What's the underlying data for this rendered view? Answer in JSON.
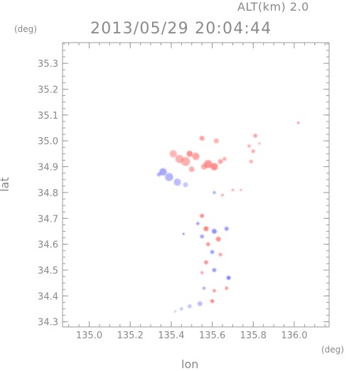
{
  "header": {
    "altitude_label": "ALT(km) 2.0",
    "timestamp": "2013/05/29 20:04:44"
  },
  "axes": {
    "y_unit": "(deg)",
    "x_unit": "(deg)"
  },
  "chart_data": {
    "type": "heatmap",
    "xlabel": "lon",
    "ylabel": "lat",
    "xlim": [
      134.87,
      136.17
    ],
    "ylim": [
      34.28,
      35.38
    ],
    "x_ticks": [
      135.0,
      135.2,
      135.4,
      135.6,
      135.8,
      136.0
    ],
    "x_tick_labels": [
      "135.0",
      "135.2",
      "135.4",
      "135.6",
      "135.8",
      "136.0"
    ],
    "y_ticks": [
      34.3,
      34.4,
      34.5,
      34.6,
      34.7,
      34.8,
      34.9,
      35.0,
      35.1,
      35.2,
      35.3
    ],
    "y_tick_labels": [
      "34.3",
      "34.4",
      "34.5",
      "34.6",
      "34.7",
      "34.8",
      "34.9",
      "35.0",
      "35.1",
      "35.2",
      "35.3"
    ],
    "colors": {
      "positive": "#ff6e6e",
      "negative": "#6e6eff",
      "axis": "#999999"
    },
    "echoes": [
      {
        "lon": 135.55,
        "lat": 35.01,
        "v": 0.4,
        "r": 0.012
      },
      {
        "lon": 135.62,
        "lat": 35.0,
        "v": 0.3,
        "r": 0.012
      },
      {
        "lon": 135.49,
        "lat": 34.95,
        "v": 0.5,
        "r": 0.015
      },
      {
        "lon": 135.52,
        "lat": 34.94,
        "v": 0.35,
        "r": 0.018
      },
      {
        "lon": 135.47,
        "lat": 34.92,
        "v": 0.3,
        "r": 0.022
      },
      {
        "lon": 135.44,
        "lat": 34.93,
        "v": 0.3,
        "r": 0.02
      },
      {
        "lon": 135.41,
        "lat": 34.95,
        "v": 0.25,
        "r": 0.018
      },
      {
        "lon": 135.5,
        "lat": 34.89,
        "v": 0.3,
        "r": 0.014
      },
      {
        "lon": 135.58,
        "lat": 34.91,
        "v": 0.45,
        "r": 0.02
      },
      {
        "lon": 135.61,
        "lat": 34.9,
        "v": 0.5,
        "r": 0.018
      },
      {
        "lon": 135.56,
        "lat": 34.9,
        "v": 0.35,
        "r": 0.014
      },
      {
        "lon": 135.64,
        "lat": 34.92,
        "v": 0.35,
        "r": 0.012
      },
      {
        "lon": 135.66,
        "lat": 34.93,
        "v": 0.3,
        "r": 0.01
      },
      {
        "lon": 135.81,
        "lat": 35.02,
        "v": 0.35,
        "r": 0.01
      },
      {
        "lon": 135.78,
        "lat": 34.98,
        "v": 0.3,
        "r": 0.008
      },
      {
        "lon": 135.8,
        "lat": 34.96,
        "v": 0.35,
        "r": 0.009
      },
      {
        "lon": 135.79,
        "lat": 34.92,
        "v": 0.3,
        "r": 0.009
      },
      {
        "lon": 135.83,
        "lat": 34.99,
        "v": 0.25,
        "r": 0.006
      },
      {
        "lon": 136.02,
        "lat": 35.07,
        "v": 0.45,
        "r": 0.006
      },
      {
        "lon": 135.36,
        "lat": 34.88,
        "v": -0.35,
        "r": 0.018
      },
      {
        "lon": 135.39,
        "lat": 34.86,
        "v": -0.25,
        "r": 0.02
      },
      {
        "lon": 135.43,
        "lat": 34.84,
        "v": -0.2,
        "r": 0.018
      },
      {
        "lon": 135.34,
        "lat": 34.87,
        "v": -0.3,
        "r": 0.01
      },
      {
        "lon": 135.47,
        "lat": 34.83,
        "v": -0.15,
        "r": 0.012
      },
      {
        "lon": 135.61,
        "lat": 34.8,
        "v": -0.3,
        "r": 0.008
      },
      {
        "lon": 135.65,
        "lat": 34.79,
        "v": 0.3,
        "r": 0.007
      },
      {
        "lon": 135.7,
        "lat": 34.81,
        "v": 0.35,
        "r": 0.006
      },
      {
        "lon": 135.74,
        "lat": 34.81,
        "v": 0.4,
        "r": 0.005
      },
      {
        "lon": 135.55,
        "lat": 34.71,
        "v": 0.55,
        "r": 0.01
      },
      {
        "lon": 135.53,
        "lat": 34.68,
        "v": -0.4,
        "r": 0.008
      },
      {
        "lon": 135.57,
        "lat": 34.66,
        "v": 0.6,
        "r": 0.012
      },
      {
        "lon": 135.61,
        "lat": 34.65,
        "v": -0.5,
        "r": 0.012
      },
      {
        "lon": 135.63,
        "lat": 34.62,
        "v": 0.5,
        "r": 0.012
      },
      {
        "lon": 135.58,
        "lat": 34.6,
        "v": 0.45,
        "r": 0.01
      },
      {
        "lon": 135.55,
        "lat": 34.63,
        "v": -0.35,
        "r": 0.01
      },
      {
        "lon": 135.67,
        "lat": 34.66,
        "v": -0.45,
        "r": 0.01
      },
      {
        "lon": 135.6,
        "lat": 34.57,
        "v": -0.4,
        "r": 0.01
      },
      {
        "lon": 135.64,
        "lat": 34.56,
        "v": 0.4,
        "r": 0.009
      },
      {
        "lon": 135.57,
        "lat": 34.53,
        "v": 0.5,
        "r": 0.01
      },
      {
        "lon": 135.61,
        "lat": 34.5,
        "v": -0.45,
        "r": 0.01
      },
      {
        "lon": 135.55,
        "lat": 34.49,
        "v": 0.35,
        "r": 0.008
      },
      {
        "lon": 135.68,
        "lat": 34.47,
        "v": -0.6,
        "r": 0.01
      },
      {
        "lon": 135.67,
        "lat": 34.43,
        "v": 0.5,
        "r": 0.008
      },
      {
        "lon": 135.61,
        "lat": 34.42,
        "v": 0.5,
        "r": 0.008
      },
      {
        "lon": 135.56,
        "lat": 34.43,
        "v": -0.3,
        "r": 0.008
      },
      {
        "lon": 135.6,
        "lat": 34.38,
        "v": 0.7,
        "r": 0.009
      },
      {
        "lon": 135.54,
        "lat": 34.37,
        "v": -0.2,
        "r": 0.012
      },
      {
        "lon": 135.49,
        "lat": 34.36,
        "v": -0.15,
        "r": 0.01
      },
      {
        "lon": 135.45,
        "lat": 34.35,
        "v": -0.15,
        "r": 0.008
      },
      {
        "lon": 135.42,
        "lat": 34.34,
        "v": -0.1,
        "r": 0.006
      },
      {
        "lon": 135.46,
        "lat": 34.64,
        "v": -0.6,
        "r": 0.003
      }
    ]
  }
}
